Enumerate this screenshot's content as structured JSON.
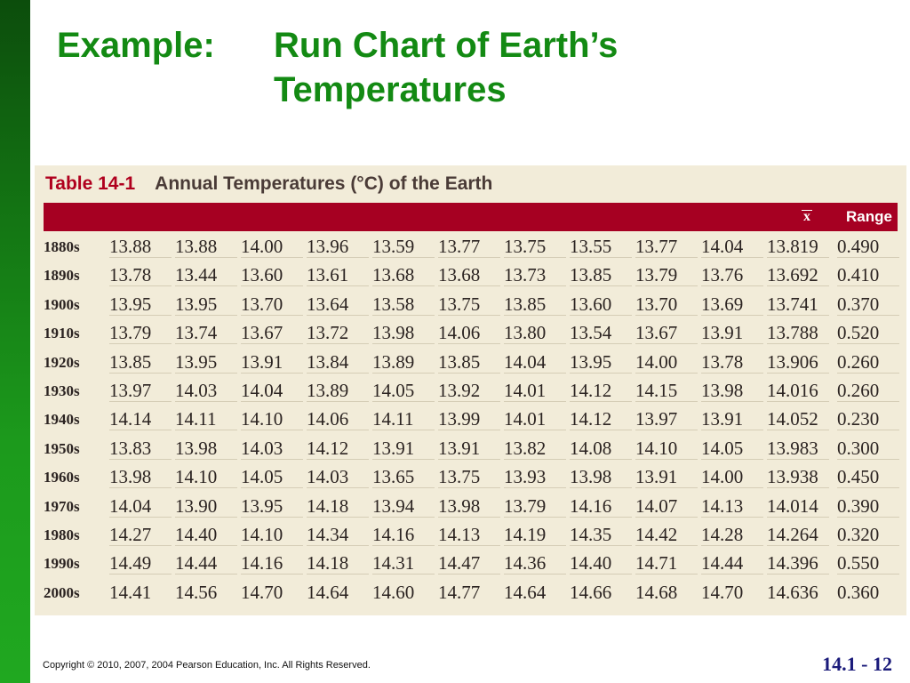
{
  "slide": {
    "title_label": "Example:",
    "title_line1": "Run Chart of Earth’s",
    "title_line2": "Temperatures",
    "copyright": "Copyright © 2010, 2007, 2004 Pearson Education, Inc. All Rights Reserved.",
    "slide_number": "14.1 - 12"
  },
  "table": {
    "number": "Table 14-1",
    "title": "Annual Temperatures (°C) of the Earth",
    "header_mean_symbol": "x",
    "header_range": "Range",
    "rows": [
      {
        "decade": "1880s",
        "values": [
          "13.88",
          "13.88",
          "14.00",
          "13.96",
          "13.59",
          "13.77",
          "13.75",
          "13.55",
          "13.77",
          "14.04"
        ],
        "mean": "13.819",
        "range": "0.490"
      },
      {
        "decade": "1890s",
        "values": [
          "13.78",
          "13.44",
          "13.60",
          "13.61",
          "13.68",
          "13.68",
          "13.73",
          "13.85",
          "13.79",
          "13.76"
        ],
        "mean": "13.692",
        "range": "0.410"
      },
      {
        "decade": "1900s",
        "values": [
          "13.95",
          "13.95",
          "13.70",
          "13.64",
          "13.58",
          "13.75",
          "13.85",
          "13.60",
          "13.70",
          "13.69"
        ],
        "mean": "13.741",
        "range": "0.370"
      },
      {
        "decade": "1910s",
        "values": [
          "13.79",
          "13.74",
          "13.67",
          "13.72",
          "13.98",
          "14.06",
          "13.80",
          "13.54",
          "13.67",
          "13.91"
        ],
        "mean": "13.788",
        "range": "0.520"
      },
      {
        "decade": "1920s",
        "values": [
          "13.85",
          "13.95",
          "13.91",
          "13.84",
          "13.89",
          "13.85",
          "14.04",
          "13.95",
          "14.00",
          "13.78"
        ],
        "mean": "13.906",
        "range": "0.260"
      },
      {
        "decade": "1930s",
        "values": [
          "13.97",
          "14.03",
          "14.04",
          "13.89",
          "14.05",
          "13.92",
          "14.01",
          "14.12",
          "14.15",
          "13.98"
        ],
        "mean": "14.016",
        "range": "0.260"
      },
      {
        "decade": "1940s",
        "values": [
          "14.14",
          "14.11",
          "14.10",
          "14.06",
          "14.11",
          "13.99",
          "14.01",
          "14.12",
          "13.97",
          "13.91"
        ],
        "mean": "14.052",
        "range": "0.230"
      },
      {
        "decade": "1950s",
        "values": [
          "13.83",
          "13.98",
          "14.03",
          "14.12",
          "13.91",
          "13.91",
          "13.82",
          "14.08",
          "14.10",
          "14.05"
        ],
        "mean": "13.983",
        "range": "0.300"
      },
      {
        "decade": "1960s",
        "values": [
          "13.98",
          "14.10",
          "14.05",
          "14.03",
          "13.65",
          "13.75",
          "13.93",
          "13.98",
          "13.91",
          "14.00"
        ],
        "mean": "13.938",
        "range": "0.450"
      },
      {
        "decade": "1970s",
        "values": [
          "14.04",
          "13.90",
          "13.95",
          "14.18",
          "13.94",
          "13.98",
          "13.79",
          "14.16",
          "14.07",
          "14.13"
        ],
        "mean": "14.014",
        "range": "0.390"
      },
      {
        "decade": "1980s",
        "values": [
          "14.27",
          "14.40",
          "14.10",
          "14.34",
          "14.16",
          "14.13",
          "14.19",
          "14.35",
          "14.42",
          "14.28"
        ],
        "mean": "14.264",
        "range": "0.320"
      },
      {
        "decade": "1990s",
        "values": [
          "14.49",
          "14.44",
          "14.16",
          "14.18",
          "14.31",
          "14.47",
          "14.36",
          "14.40",
          "14.71",
          "14.44"
        ],
        "mean": "14.396",
        "range": "0.550"
      },
      {
        "decade": "2000s",
        "values": [
          "14.41",
          "14.56",
          "14.70",
          "14.64",
          "14.60",
          "14.77",
          "14.64",
          "14.66",
          "14.68",
          "14.70"
        ],
        "mean": "14.636",
        "range": "0.360"
      }
    ]
  }
}
